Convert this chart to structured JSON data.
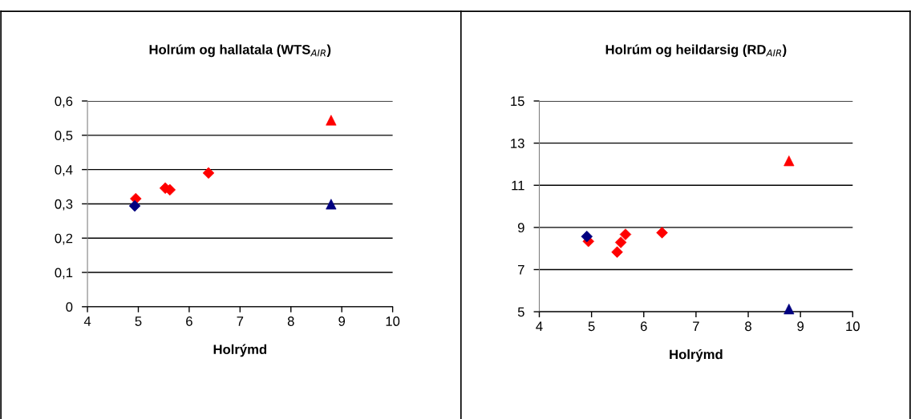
{
  "chart_data": [
    {
      "type": "scatter",
      "title": "Holrúm og hallatala (WTS$_{AIR}$)",
      "xlabel": "Holrýmd",
      "xlim": [
        4,
        10
      ],
      "xticks": [
        4,
        5,
        6,
        7,
        8,
        9,
        10
      ],
      "ylim": [
        0,
        0.6
      ],
      "yticks": [
        {
          "value": 0,
          "label": "0"
        },
        {
          "value": 0.1,
          "label": "0,1"
        },
        {
          "value": 0.2,
          "label": "0,2"
        },
        {
          "value": 0.3,
          "label": "0,3"
        },
        {
          "value": 0.4,
          "label": "0,4"
        },
        {
          "value": 0.5,
          "label": "0,5"
        },
        {
          "value": 0.6,
          "label": "0,6"
        }
      ],
      "grid": "y",
      "legend": false,
      "series": [
        {
          "color": "#000080",
          "marker": "diamond",
          "x": [
            4.93
          ],
          "values": [
            0.294
          ]
        },
        {
          "color": "#ff0000",
          "marker": "diamond",
          "x": [
            4.95,
            5.53,
            6.38
          ],
          "values": [
            0.315,
            0.346,
            0.39
          ]
        },
        {
          "color": "#ff0000",
          "marker": "diamond",
          "x": [
            5.62
          ],
          "values": [
            0.341
          ]
        },
        {
          "color": "#ff0000",
          "marker": "triangle",
          "x": [
            8.79
          ],
          "values": [
            0.544
          ]
        },
        {
          "color": "#000080",
          "marker": "triangle",
          "x": [
            8.79
          ],
          "values": [
            0.299
          ]
        }
      ]
    },
    {
      "type": "scatter",
      "title": "Holrúm og heildarsig (RD$_{AIR}$)",
      "xlabel": "Holrýmd",
      "xlim": [
        4,
        10
      ],
      "xticks": [
        4,
        5,
        6,
        7,
        8,
        9,
        10
      ],
      "ylim": [
        5,
        15
      ],
      "yticks": [
        5,
        7,
        9,
        11,
        13,
        15
      ],
      "grid": "y",
      "legend": false,
      "series": [
        {
          "color": "#000080",
          "marker": "diamond",
          "x": [
            4.91
          ],
          "values": [
            8.57
          ]
        },
        {
          "color": "#ff0000",
          "marker": "diamond",
          "x": [
            4.94,
            5.49,
            5.65,
            6.35
          ],
          "values": [
            8.34,
            7.83,
            8.67,
            8.75
          ]
        },
        {
          "color": "#ff0000",
          "marker": "diamond",
          "x": [
            5.56
          ],
          "values": [
            8.29
          ]
        },
        {
          "color": "#ff0000",
          "marker": "triangle",
          "x": [
            8.78
          ],
          "values": [
            12.16
          ]
        },
        {
          "color": "#000080",
          "marker": "triangle",
          "x": [
            8.78
          ],
          "values": [
            5.13
          ]
        }
      ]
    }
  ]
}
